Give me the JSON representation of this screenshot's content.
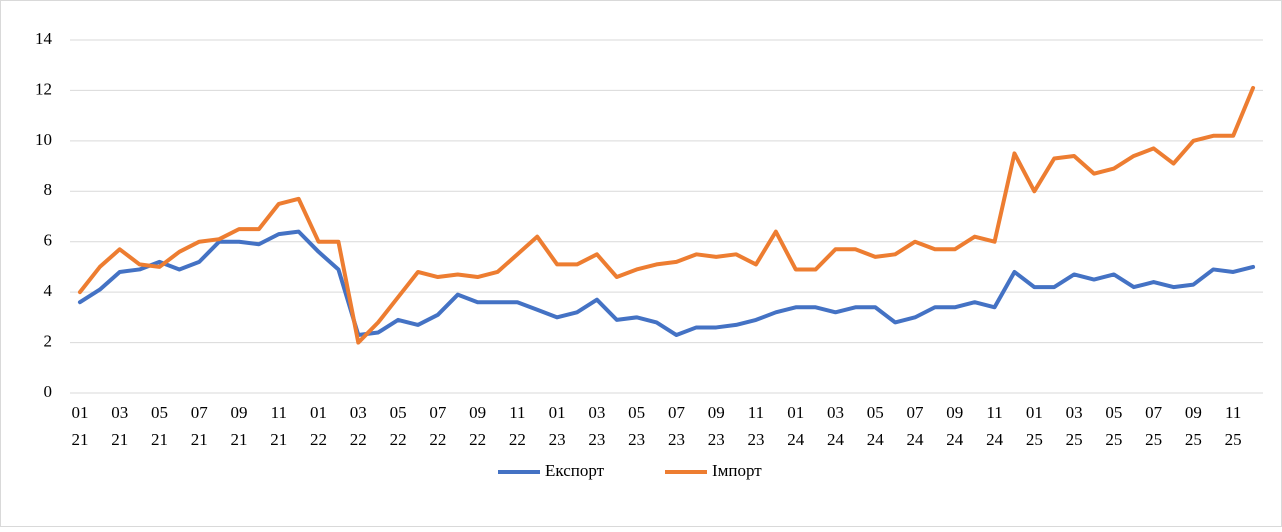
{
  "chart_data": {
    "type": "line",
    "categories": [
      [
        "01",
        "21"
      ],
      null,
      [
        "03",
        "21"
      ],
      null,
      [
        "05",
        "21"
      ],
      null,
      [
        "07",
        "21"
      ],
      null,
      [
        "09",
        "21"
      ],
      null,
      [
        "11",
        "21"
      ],
      null,
      [
        "01",
        "22"
      ],
      null,
      [
        "03",
        "22"
      ],
      null,
      [
        "05",
        "22"
      ],
      null,
      [
        "07",
        "22"
      ],
      null,
      [
        "09",
        "22"
      ],
      null,
      [
        "11",
        "22"
      ],
      null,
      [
        "01",
        "23"
      ],
      null,
      [
        "03",
        "23"
      ],
      null,
      [
        "05",
        "23"
      ],
      null,
      [
        "07",
        "23"
      ],
      null,
      [
        "09",
        "23"
      ],
      null,
      [
        "11",
        "23"
      ],
      null,
      [
        "01",
        "24"
      ],
      null,
      [
        "03",
        "24"
      ],
      null,
      [
        "05",
        "24"
      ],
      null,
      [
        "07",
        "24"
      ],
      null,
      [
        "09",
        "24"
      ],
      null,
      [
        "11",
        "24"
      ],
      null,
      [
        "01",
        "25"
      ],
      null,
      [
        "03",
        "25"
      ],
      null,
      [
        "05",
        "25"
      ],
      null,
      [
        "07",
        "25"
      ],
      null,
      [
        "09",
        "25"
      ],
      null,
      [
        "11",
        "25"
      ],
      null
    ],
    "series": [
      {
        "name": "Експорт",
        "color": "#4472c4",
        "values": [
          3.6,
          4.1,
          4.8,
          4.9,
          5.2,
          4.9,
          5.2,
          6.0,
          6.0,
          5.9,
          6.3,
          6.4,
          5.6,
          4.9,
          2.3,
          2.4,
          2.9,
          2.7,
          3.1,
          3.9,
          3.6,
          3.6,
          3.6,
          3.3,
          3.0,
          3.2,
          3.7,
          2.9,
          3.0,
          2.8,
          2.3,
          2.6,
          2.6,
          2.7,
          2.9,
          3.2,
          3.4,
          3.4,
          3.2,
          3.4,
          3.4,
          2.8,
          3.0,
          3.4,
          3.4,
          3.6,
          3.4,
          4.8,
          4.2,
          4.2,
          4.7,
          4.5,
          4.7,
          4.2,
          4.4,
          4.2,
          4.3,
          4.9,
          4.8,
          5.0
        ]
      },
      {
        "name": "Імпорт",
        "color": "#ed7d31",
        "values": [
          4.0,
          5.0,
          5.7,
          5.1,
          5.0,
          5.6,
          6.0,
          6.1,
          6.5,
          6.5,
          7.5,
          7.7,
          6.0,
          6.0,
          2.0,
          2.8,
          3.8,
          4.8,
          4.6,
          4.7,
          4.6,
          4.8,
          5.5,
          6.2,
          5.1,
          5.1,
          5.5,
          4.6,
          4.9,
          5.1,
          5.2,
          5.5,
          5.4,
          5.5,
          5.1,
          6.4,
          4.9,
          4.9,
          5.7,
          5.7,
          5.4,
          5.5,
          6.0,
          5.7,
          5.7,
          6.2,
          6.0,
          9.5,
          8.0,
          9.3,
          9.4,
          8.7,
          8.9,
          9.4,
          9.7,
          9.1,
          10.0,
          10.2,
          10.2,
          12.1
        ]
      }
    ],
    "ylim": [
      0,
      14
    ],
    "yticks": [
      0,
      2,
      4,
      6,
      8,
      10,
      12,
      14
    ],
    "grid": true,
    "legend": "bottom"
  }
}
